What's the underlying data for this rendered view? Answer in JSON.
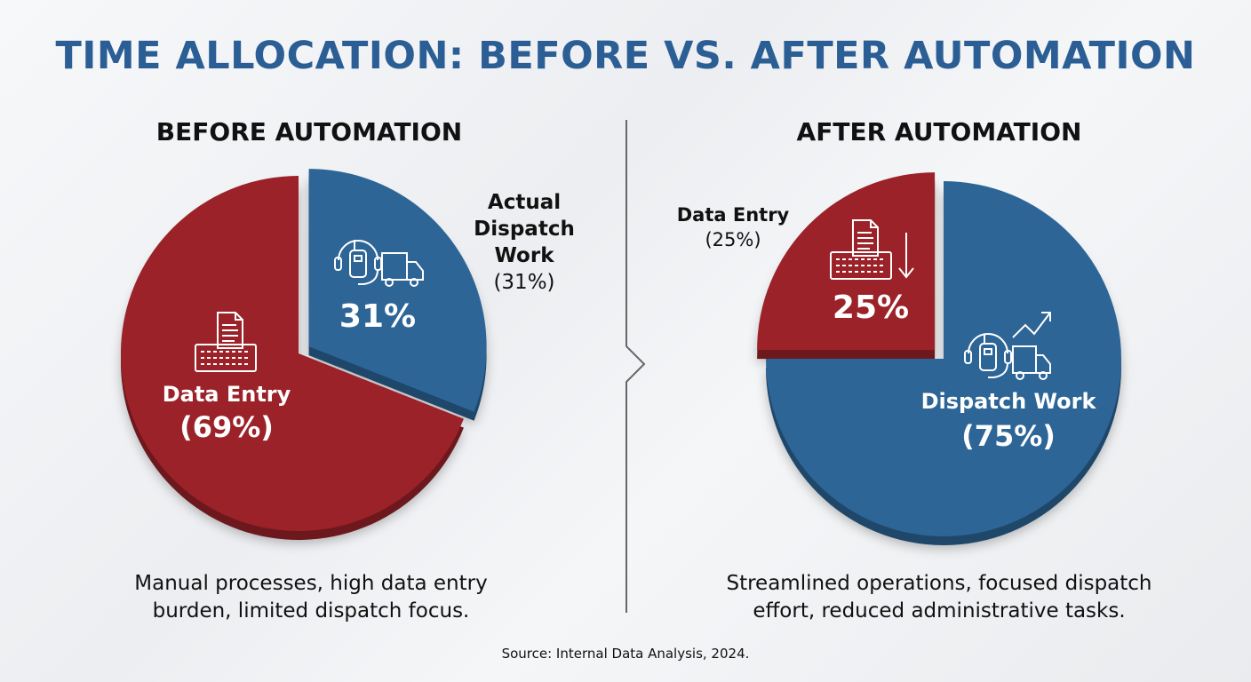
{
  "title": "TIME ALLOCATION: BEFORE VS. AFTER AUTOMATION",
  "source": "Source: Internal Data Analysis, 2024.",
  "colors": {
    "data_entry": "#9B2229",
    "dispatch": "#2D6597",
    "title": "#2B5E94"
  },
  "chart_data": [
    {
      "type": "pie",
      "title": "BEFORE AUTOMATION",
      "categories": [
        "Actual Dispatch Work",
        "Data Entry"
      ],
      "values": [
        31,
        69
      ],
      "exploded": "Actual Dispatch Work",
      "slice_labels": {
        "dispatch_pct": "31%",
        "data_entry_name": "Data Entry",
        "data_entry_pct": "(69%)"
      },
      "callout": {
        "line1": "Actual",
        "line2": "Dispatch",
        "line3": "Work",
        "line4": "(31%)"
      },
      "caption": {
        "line1": "Manual processes, high data entry",
        "line2": "burden, limited dispatch focus."
      }
    },
    {
      "type": "pie",
      "title": "AFTER AUTOMATION",
      "categories": [
        "Dispatch Work",
        "Data Entry"
      ],
      "values": [
        75,
        25
      ],
      "exploded": "Data Entry",
      "slice_labels": {
        "data_entry_pct": "25%",
        "dispatch_name": "Dispatch Work",
        "dispatch_pct": "(75%)"
      },
      "callout": {
        "line1": "Data Entry",
        "line2": "(25%)"
      },
      "caption": {
        "line1": "Streamlined operations, focused dispatch",
        "line2": "effort, reduced administrative tasks."
      }
    }
  ],
  "icons": [
    "document-keyboard-icon",
    "headset-truck-icon",
    "arrow-down-icon",
    "trend-up-icon"
  ]
}
